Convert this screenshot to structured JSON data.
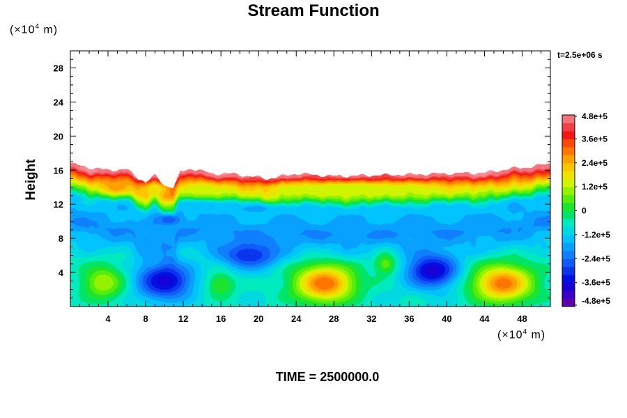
{
  "chart_data": {
    "type": "heatmap",
    "title": "Stream Function",
    "ylabel": "Height",
    "y_unit": "(×10",
    "x_unit": "(×10",
    "unit_exp": "4",
    "unit_tail": " m)",
    "time_label": "t=2.5e+06 s",
    "footer": "TIME = 2500000.0",
    "xlim": [
      0,
      51
    ],
    "ylim": [
      0,
      30
    ],
    "x_ticks": [
      "4",
      "8",
      "12",
      "16",
      "20",
      "24",
      "28",
      "32",
      "36",
      "40",
      "44",
      "48"
    ],
    "x_tick_values": [
      4,
      8,
      12,
      16,
      20,
      24,
      28,
      32,
      36,
      40,
      44,
      48
    ],
    "y_ticks": [
      "4",
      "8",
      "12",
      "16",
      "20",
      "24",
      "28"
    ],
    "y_tick_values": [
      4,
      8,
      12,
      16,
      20,
      24,
      28
    ],
    "colorbar": {
      "labels": [
        "4.8e+5",
        "3.6e+5",
        "2.4e+5",
        "1.2e+5",
        "0",
        "-1.2e+5",
        "-2.4e+5",
        "-3.6e+5",
        "-4.8e+5"
      ],
      "values": [
        480000,
        360000,
        240000,
        120000,
        0,
        -120000,
        -240000,
        -360000,
        -480000
      ],
      "range": [
        -480000,
        480000
      ]
    },
    "top_boundary": [
      {
        "x": 0,
        "y": 16.8
      },
      {
        "x": 2,
        "y": 16.3
      },
      {
        "x": 4,
        "y": 16.0
      },
      {
        "x": 6,
        "y": 16.1
      },
      {
        "x": 7,
        "y": 15.2
      },
      {
        "x": 8,
        "y": 14.6
      },
      {
        "x": 9,
        "y": 15.4
      },
      {
        "x": 10,
        "y": 14.2
      },
      {
        "x": 11,
        "y": 14.0
      },
      {
        "x": 11.7,
        "y": 15.8
      },
      {
        "x": 13,
        "y": 16.2
      },
      {
        "x": 15,
        "y": 15.6
      },
      {
        "x": 17,
        "y": 15.6
      },
      {
        "x": 19,
        "y": 15.3
      },
      {
        "x": 21,
        "y": 15.0
      },
      {
        "x": 24,
        "y": 15.6
      },
      {
        "x": 28,
        "y": 15.3
      },
      {
        "x": 32,
        "y": 15.4
      },
      {
        "x": 36,
        "y": 15.5
      },
      {
        "x": 40,
        "y": 15.6
      },
      {
        "x": 44,
        "y": 15.7
      },
      {
        "x": 47,
        "y": 16.2
      },
      {
        "x": 49,
        "y": 16.4
      },
      {
        "x": 51,
        "y": 16.8
      }
    ],
    "features": [
      {
        "x": 5,
        "y": 14.0,
        "value": 260000,
        "sx": 2.0,
        "sy": 0.9
      },
      {
        "x": 9,
        "y": 13.8,
        "value": 180000,
        "sx": 2.0,
        "sy": 0.9
      },
      {
        "x": 14,
        "y": 13.5,
        "value": 140000,
        "sx": 2.5,
        "sy": 1.0
      },
      {
        "x": 30,
        "y": 13.8,
        "value": 120000,
        "sx": 12,
        "sy": 0.9
      },
      {
        "x": 15,
        "y": 11.7,
        "value": -160000,
        "sx": 3.5,
        "sy": 0.8
      },
      {
        "x": 20,
        "y": 11.5,
        "value": -170000,
        "sx": 2.5,
        "sy": 0.6
      },
      {
        "x": 10.5,
        "y": 10.2,
        "value": -280000,
        "sx": 1.2,
        "sy": 0.7
      },
      {
        "x": 10,
        "y": 3.0,
        "value": -380000,
        "sx": 3.0,
        "sy": 2.2
      },
      {
        "x": 19,
        "y": 6.0,
        "value": -320000,
        "sx": 3.0,
        "sy": 1.6
      },
      {
        "x": 38.5,
        "y": 4.2,
        "value": -390000,
        "sx": 2.8,
        "sy": 2.0
      },
      {
        "x": 27,
        "y": 2.7,
        "value": 320000,
        "sx": 3.2,
        "sy": 2.2
      },
      {
        "x": 46,
        "y": 2.7,
        "value": 310000,
        "sx": 3.2,
        "sy": 2.2
      },
      {
        "x": 3.5,
        "y": 2.8,
        "value": 120000,
        "sx": 2.2,
        "sy": 2.0
      },
      {
        "x": 33.5,
        "y": 5.0,
        "value": 60000,
        "sx": 1.2,
        "sy": 1.4
      },
      {
        "x": 16,
        "y": 2.5,
        "value": 40000,
        "sx": 1.5,
        "sy": 1.5
      }
    ]
  }
}
